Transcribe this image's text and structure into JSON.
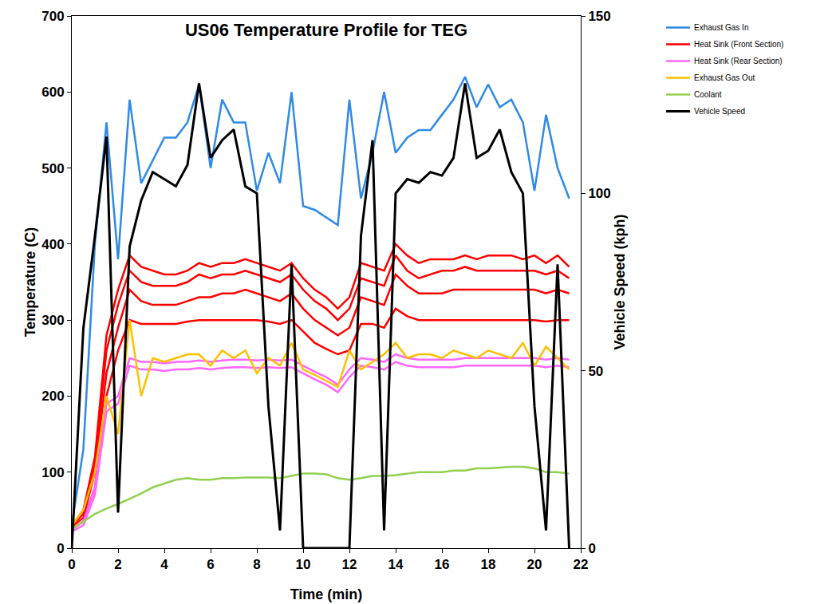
{
  "chart_data": {
    "type": "line",
    "title": "US06 Temperature Profile for TEG",
    "x_label": "Time (min)",
    "y_label": "Temperature (C)",
    "y2_label": "Vehicle Speed (kph)",
    "x": [
      0,
      0.5,
      1,
      1.5,
      2,
      2.5,
      3,
      3.5,
      4,
      4.5,
      5,
      5.5,
      6,
      6.5,
      7,
      7.5,
      8,
      8.5,
      9,
      9.5,
      10,
      10.5,
      11,
      11.5,
      12,
      12.5,
      13,
      13.5,
      14,
      14.5,
      15,
      15.5,
      16,
      16.5,
      17,
      17.5,
      18,
      18.5,
      19,
      19.5,
      20,
      20.5,
      21,
      21.5
    ],
    "xlim": [
      0,
      22
    ],
    "xticks": [
      0,
      2,
      4,
      6,
      8,
      10,
      12,
      14,
      16,
      18,
      20,
      22
    ],
    "ylim": [
      0,
      700
    ],
    "yticks": [
      0,
      100,
      200,
      300,
      400,
      500,
      600,
      700
    ],
    "y2lim": [
      0,
      150
    ],
    "y2ticks": [
      0,
      50,
      100,
      150
    ],
    "grid": false,
    "legend": "right",
    "series": [
      {
        "name": "Exhaust Gas In",
        "color": "#2e8ae6",
        "values": [
          30,
          130,
          400,
          560,
          380,
          590,
          480,
          510,
          540,
          540,
          560,
          610,
          500,
          590,
          560,
          560,
          470,
          520,
          480,
          600,
          450,
          445,
          435,
          425,
          590,
          460,
          520,
          600,
          520,
          540,
          550,
          550,
          570,
          590,
          620,
          580,
          610,
          580,
          590,
          560,
          470,
          570,
          500,
          460
        ]
      },
      {
        "name": "Heat Sink (Front Section)",
        "color": "#ff0000",
        "values": [
          30,
          50,
          120,
          280,
          340,
          385,
          370,
          365,
          360,
          360,
          365,
          375,
          370,
          375,
          375,
          380,
          375,
          370,
          365,
          375,
          355,
          340,
          330,
          315,
          330,
          375,
          370,
          365,
          400,
          385,
          375,
          380,
          380,
          380,
          385,
          380,
          385,
          385,
          385,
          380,
          385,
          375,
          385,
          370
        ]
      },
      {
        "name": "Heat Sink (Front Section)",
        "color": "#ff0000",
        "values": [
          30,
          45,
          110,
          260,
          320,
          365,
          350,
          345,
          345,
          345,
          350,
          360,
          355,
          360,
          360,
          365,
          360,
          355,
          350,
          360,
          340,
          325,
          315,
          300,
          315,
          355,
          350,
          345,
          385,
          365,
          355,
          360,
          365,
          365,
          370,
          365,
          365,
          365,
          365,
          365,
          365,
          360,
          365,
          355
        ]
      },
      {
        "name": "Heat Sink (Front Section)",
        "color": "#ff0000",
        "values": [
          28,
          40,
          100,
          230,
          290,
          340,
          325,
          320,
          320,
          320,
          325,
          330,
          330,
          335,
          335,
          340,
          335,
          330,
          325,
          335,
          315,
          300,
          290,
          280,
          290,
          330,
          325,
          320,
          360,
          345,
          335,
          335,
          335,
          340,
          340,
          340,
          340,
          340,
          340,
          340,
          340,
          335,
          340,
          335
        ]
      },
      {
        "name": "Heat Sink (Front Section)",
        "color": "#ff0000",
        "values": [
          25,
          35,
          80,
          200,
          260,
          300,
          295,
          295,
          295,
          295,
          298,
          300,
          300,
          300,
          300,
          300,
          300,
          298,
          295,
          300,
          285,
          270,
          262,
          255,
          260,
          295,
          295,
          290,
          315,
          305,
          300,
          300,
          300,
          300,
          300,
          300,
          300,
          300,
          300,
          300,
          300,
          298,
          300,
          300
        ]
      },
      {
        "name": "Heat Sink (Rear Section)",
        "color": "#ff66ff",
        "values": [
          25,
          35,
          80,
          190,
          200,
          250,
          245,
          245,
          243,
          245,
          245,
          247,
          245,
          247,
          248,
          248,
          247,
          248,
          247,
          248,
          240,
          232,
          225,
          215,
          235,
          250,
          248,
          245,
          255,
          250,
          248,
          248,
          248,
          248,
          250,
          250,
          250,
          250,
          250,
          250,
          250,
          248,
          250,
          248
        ]
      },
      {
        "name": "Heat Sink (Rear Section)",
        "color": "#ff66ff",
        "values": [
          22,
          30,
          70,
          180,
          190,
          240,
          235,
          235,
          233,
          235,
          235,
          237,
          235,
          237,
          238,
          238,
          237,
          238,
          237,
          238,
          230,
          222,
          215,
          205,
          225,
          240,
          238,
          235,
          245,
          240,
          238,
          238,
          238,
          238,
          240,
          240,
          240,
          240,
          240,
          240,
          240,
          238,
          240,
          238
        ]
      },
      {
        "name": "Exhaust Gas Out",
        "color": "#ffc000",
        "values": [
          30,
          50,
          100,
          200,
          150,
          300,
          200,
          250,
          245,
          250,
          255,
          255,
          240,
          260,
          250,
          260,
          230,
          250,
          240,
          270,
          235,
          228,
          220,
          212,
          260,
          235,
          245,
          255,
          270,
          250,
          255,
          255,
          250,
          260,
          255,
          250,
          260,
          255,
          250,
          270,
          240,
          265,
          250,
          235
        ]
      },
      {
        "name": "Coolant",
        "color": "#92d050",
        "values": [
          25,
          35,
          45,
          52,
          58,
          65,
          72,
          80,
          85,
          90,
          92,
          90,
          90,
          92,
          92,
          93,
          93,
          93,
          92,
          95,
          98,
          98,
          97,
          92,
          90,
          92,
          95,
          95,
          96,
          98,
          100,
          100,
          100,
          102,
          102,
          105,
          105,
          106,
          107,
          107,
          105,
          100,
          100,
          98
        ]
      },
      {
        "name": "Vehicle Speed",
        "color": "#000000",
        "axis": "y2",
        "values": [
          0,
          62,
          88,
          116,
          10,
          85,
          98,
          106,
          104,
          102,
          108,
          131,
          110,
          115,
          118,
          102,
          100,
          40,
          5,
          80,
          0,
          0,
          0,
          0,
          0,
          88,
          115,
          5,
          100,
          104,
          103,
          106,
          105,
          110,
          131,
          110,
          112,
          118,
          106,
          100,
          40,
          5,
          80,
          0
        ]
      }
    ]
  }
}
